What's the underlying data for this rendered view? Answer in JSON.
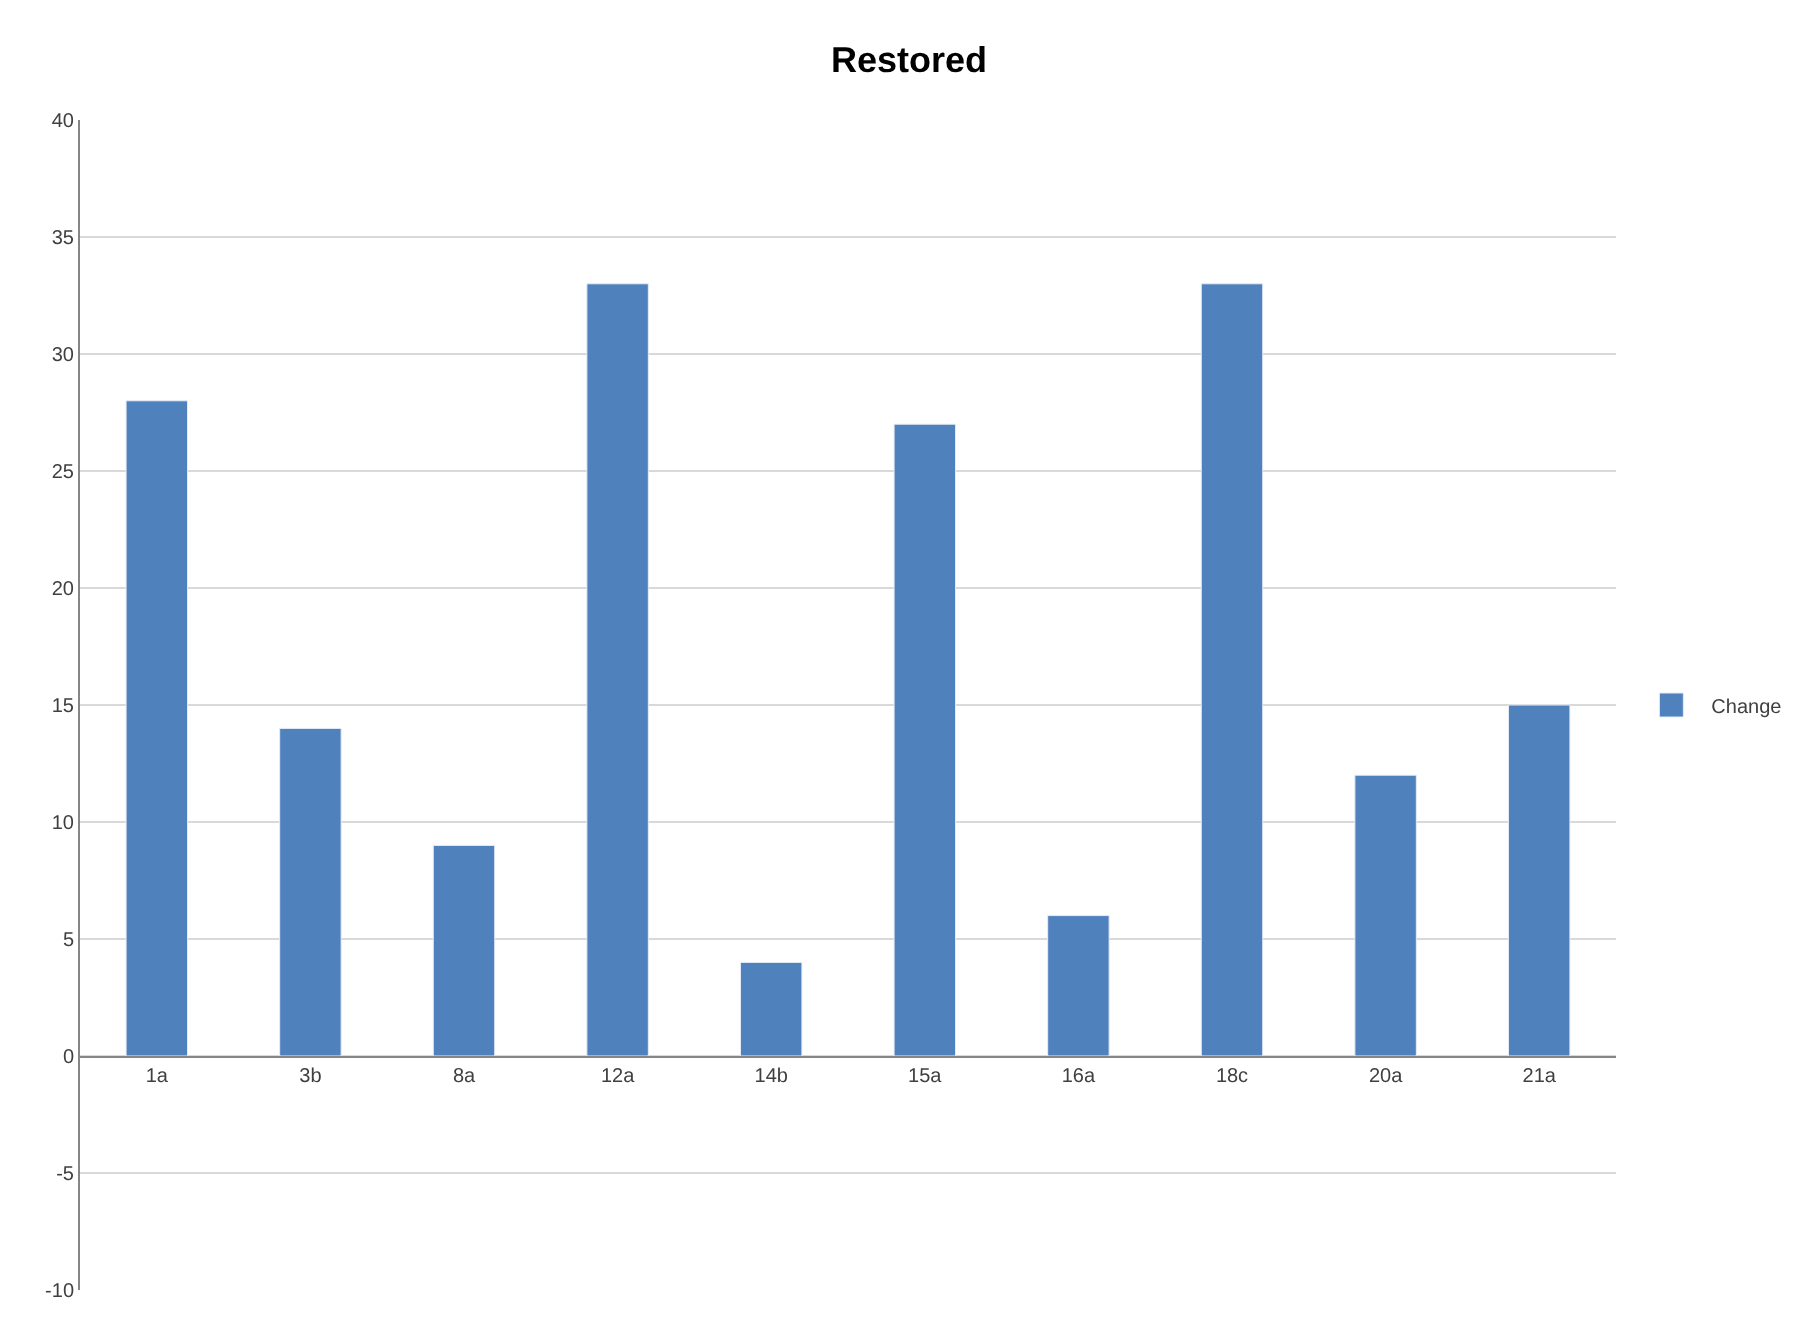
{
  "chart_data": {
    "type": "bar",
    "title": "Restored",
    "categories": [
      "1a",
      "3b",
      "8a",
      "12a",
      "14b",
      "15a",
      "16a",
      "18c",
      "20a",
      "21a"
    ],
    "series": [
      {
        "name": "Change",
        "color": "#4f81bd",
        "values": [
          28,
          14,
          9,
          33,
          4,
          27,
          6,
          33,
          12,
          15
        ]
      }
    ],
    "ylim": [
      -10,
      40
    ],
    "yticks": [
      -10,
      -5,
      0,
      5,
      10,
      15,
      20,
      25,
      30,
      35,
      40
    ],
    "grid": "y",
    "legend": "right"
  }
}
